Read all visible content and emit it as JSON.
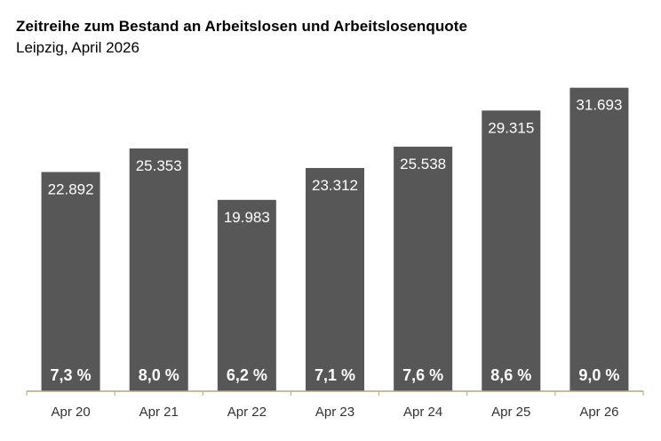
{
  "header": {
    "title": "Zeitreihe zum Bestand an Arbeitslosen und Arbeitslosenquote",
    "subtitle": "Leipzig, April 2026"
  },
  "colors": {
    "bar": "#575757",
    "bar_label": "#ffffff",
    "axis": "#b3a77e",
    "tick_label": "#333333"
  },
  "chart_data": {
    "type": "bar",
    "title": "Zeitreihe zum Bestand an Arbeitslosen und Arbeitslosenquote",
    "subtitle": "Leipzig, April 2026",
    "xlabel": "",
    "ylabel": "",
    "categories": [
      "Apr 20",
      "Apr 21",
      "Apr 22",
      "Apr 23",
      "Apr 24",
      "Apr 25",
      "Apr 26"
    ],
    "series": [
      {
        "values": [
          22892,
          25353,
          19983,
          23312,
          25538,
          29315,
          31693
        ],
        "labels": [
          "22.892",
          "25.353",
          "19.983",
          "23.312",
          "25.538",
          "29.315",
          "31.693"
        ]
      }
    ],
    "quote": {
      "values": [
        7.3,
        8.0,
        6.2,
        7.1,
        7.6,
        8.6,
        9.0
      ],
      "labels": [
        "7,3 %",
        "8,0 %",
        "6,2 %",
        "7,1 %",
        "7,6 %",
        "8,6 %",
        "9,0 %"
      ]
    },
    "ylim": [
      0,
      32500
    ],
    "grid": false,
    "legend": "none"
  }
}
